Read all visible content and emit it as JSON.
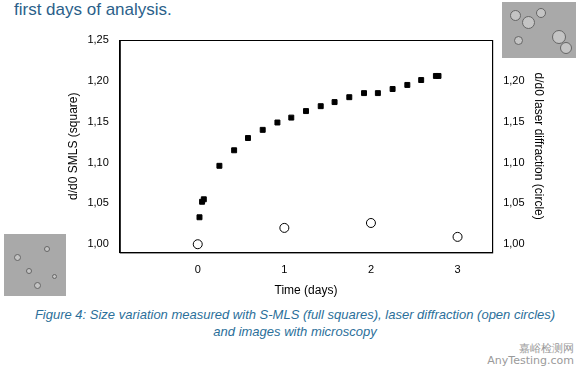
{
  "text_above": "first days of analysis.",
  "chart_data": {
    "type": "scatter",
    "xlabel": "Time (days)",
    "ylabel": "d/d0 SMLS (square)",
    "y2label": "d/d0 laser diffraction (circle)",
    "xlim": [
      -0.9,
      3.4
    ],
    "xticks": [
      0,
      1,
      2,
      3
    ],
    "ylim": [
      0.99,
      1.25
    ],
    "yticks": [
      {
        "value": 1.0,
        "label": "1,00"
      },
      {
        "value": 1.05,
        "label": "1,05"
      },
      {
        "value": 1.1,
        "label": "1,10"
      },
      {
        "value": 1.15,
        "label": "1,15"
      },
      {
        "value": 1.2,
        "label": "1,20"
      },
      {
        "value": 1.25,
        "label": "1,25"
      }
    ],
    "y2lim": [
      0.99,
      1.25
    ],
    "y2ticks": [
      {
        "value": 1.0,
        "label": "1,00"
      },
      {
        "value": 1.05,
        "label": "1,05"
      },
      {
        "value": 1.1,
        "label": "1,10"
      },
      {
        "value": 1.15,
        "label": "1,15"
      },
      {
        "value": 1.2,
        "label": "1,20"
      },
      {
        "value": 1.25,
        "label": "1,25"
      }
    ],
    "grid": false,
    "series": [
      {
        "color": "#000000",
        "marker": "square",
        "x": [
          0.02,
          0.05,
          0.07,
          0.25,
          0.42,
          0.58,
          0.75,
          0.92,
          1.08,
          1.25,
          1.42,
          1.58,
          1.75,
          1.92,
          2.08,
          2.25,
          2.42,
          2.58,
          2.75,
          2.78
        ],
        "values": [
          1.033,
          1.052,
          1.055,
          1.096,
          1.115,
          1.13,
          1.14,
          1.149,
          1.155,
          1.163,
          1.169,
          1.174,
          1.18,
          1.185,
          1.185,
          1.19,
          1.195,
          1.201,
          1.206,
          1.206
        ]
      },
      {
        "color": "#000000",
        "marker": "circle_open",
        "axis": "y2",
        "x": [
          0,
          1,
          2,
          3
        ],
        "values": [
          1.0,
          1.02,
          1.026,
          1.009
        ]
      }
    ]
  },
  "caption": "Figure 4: Size variation measured with S-MLS (full squares), laser diffraction (open circles) and images with microscopy",
  "watermark": [
    "嘉峪检测网",
    "AnyTesting.com"
  ]
}
